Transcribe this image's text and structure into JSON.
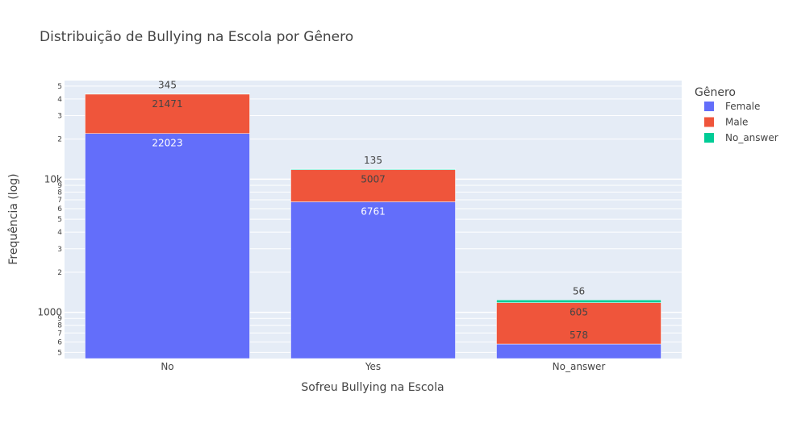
{
  "chart_data": {
    "type": "bar",
    "barmode": "stack",
    "title": "Distribuição de Bullying na Escola por Gênero",
    "xlabel": "Sofreu Bullying na Escola",
    "ylabel": "Frequência (log)",
    "y_scale": "log",
    "categories": [
      "No",
      "Yes",
      "No_answer"
    ],
    "series": [
      {
        "name": "Female",
        "color": "#636efa",
        "values": [
          22023,
          6761,
          578
        ]
      },
      {
        "name": "Male",
        "color": "#ef553b",
        "values": [
          21471,
          5007,
          605
        ]
      },
      {
        "name": "No_answer",
        "color": "#00cc96",
        "values": [
          345,
          135,
          56
        ]
      }
    ],
    "y_major_ticks": [
      {
        "value": 1000,
        "label": "1000"
      },
      {
        "value": 10000,
        "label": "10k"
      }
    ],
    "y_minor_ticks": [
      {
        "value": 500,
        "label": "5"
      },
      {
        "value": 600,
        "label": "6"
      },
      {
        "value": 700,
        "label": "7"
      },
      {
        "value": 800,
        "label": "8"
      },
      {
        "value": 900,
        "label": "9"
      },
      {
        "value": 2000,
        "label": "2"
      },
      {
        "value": 3000,
        "label": "3"
      },
      {
        "value": 4000,
        "label": "4"
      },
      {
        "value": 5000,
        "label": "5"
      },
      {
        "value": 6000,
        "label": "6"
      },
      {
        "value": 7000,
        "label": "7"
      },
      {
        "value": 8000,
        "label": "8"
      },
      {
        "value": 9000,
        "label": "9"
      },
      {
        "value": 20000,
        "label": "2"
      },
      {
        "value": 30000,
        "label": "3"
      },
      {
        "value": 40000,
        "label": "4"
      },
      {
        "value": 50000,
        "label": "5"
      }
    ],
    "ylim": [
      450,
      55000
    ],
    "grid": true,
    "legend": {
      "title": "Gênero",
      "position": "right"
    },
    "colors": {
      "plot_bg": "#e5ecf6",
      "grid": "#ffffff",
      "text": "#444444"
    }
  }
}
